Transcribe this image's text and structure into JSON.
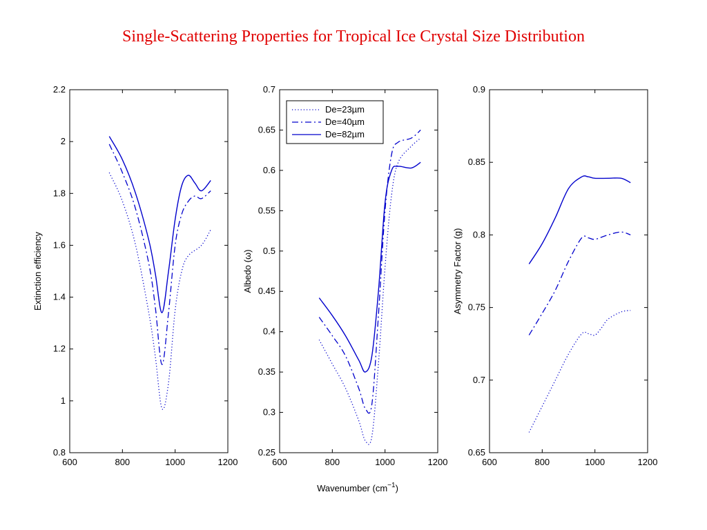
{
  "title": "Single-Scattering Properties for Tropical Ice Crystal Size Distribution",
  "xlabel_main": "Wavenumber (cm",
  "xlabel_sup": "−1",
  "xlabel_close": ")",
  "colors": {
    "title": "#e00000",
    "series": "#0000cc"
  },
  "chart_data": [
    {
      "type": "line",
      "ylabel": "Extinction efficiency",
      "xlim": [
        600,
        1200
      ],
      "ylim": [
        0.8,
        2.2
      ],
      "xticks": [
        600,
        800,
        1000,
        1200
      ],
      "yticks": [
        0.8,
        1,
        1.2,
        1.4,
        1.6,
        1.8,
        2,
        2.2
      ],
      "ytick_labels": [
        "0.8",
        "1",
        "1.2",
        "1.4",
        "1.6",
        "1.8",
        "2",
        "2.2"
      ],
      "series": [
        {
          "name": "De=23µm",
          "style": "dotted",
          "x": [
            750,
            800,
            850,
            900,
            925,
            950,
            975,
            1000,
            1025,
            1050,
            1100,
            1135
          ],
          "y": [
            1.88,
            1.77,
            1.6,
            1.34,
            1.17,
            0.97,
            1.07,
            1.35,
            1.5,
            1.56,
            1.6,
            1.66
          ]
        },
        {
          "name": "De=40µm",
          "style": "dashdot",
          "x": [
            750,
            800,
            850,
            900,
            925,
            950,
            975,
            1000,
            1025,
            1050,
            1075,
            1100,
            1135
          ],
          "y": [
            1.99,
            1.88,
            1.74,
            1.53,
            1.36,
            1.14,
            1.34,
            1.6,
            1.72,
            1.77,
            1.79,
            1.78,
            1.81
          ]
        },
        {
          "name": "De=82µm",
          "style": "solid",
          "x": [
            750,
            800,
            850,
            900,
            925,
            950,
            975,
            1000,
            1025,
            1050,
            1075,
            1100,
            1135
          ],
          "y": [
            2.02,
            1.93,
            1.8,
            1.62,
            1.49,
            1.34,
            1.5,
            1.7,
            1.83,
            1.87,
            1.84,
            1.81,
            1.85
          ]
        }
      ]
    },
    {
      "type": "line",
      "ylabel": "Albedo (ω)",
      "xlim": [
        600,
        1200
      ],
      "ylim": [
        0.25,
        0.7
      ],
      "xticks": [
        600,
        800,
        1000,
        1200
      ],
      "yticks": [
        0.25,
        0.3,
        0.35,
        0.4,
        0.45,
        0.5,
        0.55,
        0.6,
        0.65,
        0.7
      ],
      "ytick_labels": [
        "0.25",
        "0.3",
        "0.35",
        "0.4",
        "0.45",
        "0.5",
        "0.55",
        "0.6",
        "0.65",
        "0.7"
      ],
      "legend": {
        "entries": [
          "De=23µm",
          "De=40µm",
          "De=82µm"
        ],
        "placement": "top-left"
      },
      "series": [
        {
          "name": "De=23µm",
          "style": "dotted",
          "x": [
            750,
            800,
            850,
            900,
            925,
            950,
            975,
            1000,
            1025,
            1050,
            1100,
            1135
          ],
          "y": [
            0.39,
            0.36,
            0.33,
            0.29,
            0.265,
            0.27,
            0.36,
            0.48,
            0.57,
            0.61,
            0.63,
            0.64
          ]
        },
        {
          "name": "De=40µm",
          "style": "dashdot",
          "x": [
            750,
            800,
            850,
            900,
            925,
            950,
            975,
            1000,
            1025,
            1050,
            1100,
            1135
          ],
          "y": [
            0.418,
            0.395,
            0.37,
            0.33,
            0.305,
            0.31,
            0.42,
            0.55,
            0.62,
            0.635,
            0.64,
            0.65
          ]
        },
        {
          "name": "De=82µm",
          "style": "solid",
          "x": [
            750,
            800,
            850,
            900,
            925,
            950,
            975,
            1000,
            1025,
            1050,
            1100,
            1135
          ],
          "y": [
            0.442,
            0.42,
            0.395,
            0.365,
            0.35,
            0.37,
            0.45,
            0.56,
            0.6,
            0.605,
            0.603,
            0.61
          ]
        }
      ]
    },
    {
      "type": "line",
      "ylabel": "Asymmetry Factor (g)",
      "xlim": [
        600,
        1200
      ],
      "ylim": [
        0.65,
        0.9
      ],
      "xticks": [
        600,
        800,
        1000,
        1200
      ],
      "yticks": [
        0.65,
        0.7,
        0.75,
        0.8,
        0.85,
        0.9
      ],
      "ytick_labels": [
        "0.65",
        "0.7",
        "0.75",
        "0.8",
        "0.85",
        "0.9"
      ],
      "series": [
        {
          "name": "De=23µm",
          "style": "dotted",
          "x": [
            750,
            800,
            850,
            900,
            950,
            975,
            1000,
            1025,
            1050,
            1100,
            1135
          ],
          "y": [
            0.664,
            0.682,
            0.7,
            0.718,
            0.732,
            0.732,
            0.731,
            0.736,
            0.742,
            0.747,
            0.748
          ]
        },
        {
          "name": "De=40µm",
          "style": "dashdot",
          "x": [
            750,
            800,
            850,
            900,
            950,
            975,
            1000,
            1050,
            1100,
            1135
          ],
          "y": [
            0.731,
            0.746,
            0.762,
            0.782,
            0.798,
            0.798,
            0.797,
            0.8,
            0.802,
            0.8
          ]
        },
        {
          "name": "De=82µm",
          "style": "solid",
          "x": [
            750,
            800,
            850,
            900,
            950,
            975,
            1000,
            1050,
            1100,
            1135
          ],
          "y": [
            0.78,
            0.794,
            0.812,
            0.832,
            0.84,
            0.84,
            0.839,
            0.839,
            0.839,
            0.836
          ]
        }
      ]
    }
  ]
}
